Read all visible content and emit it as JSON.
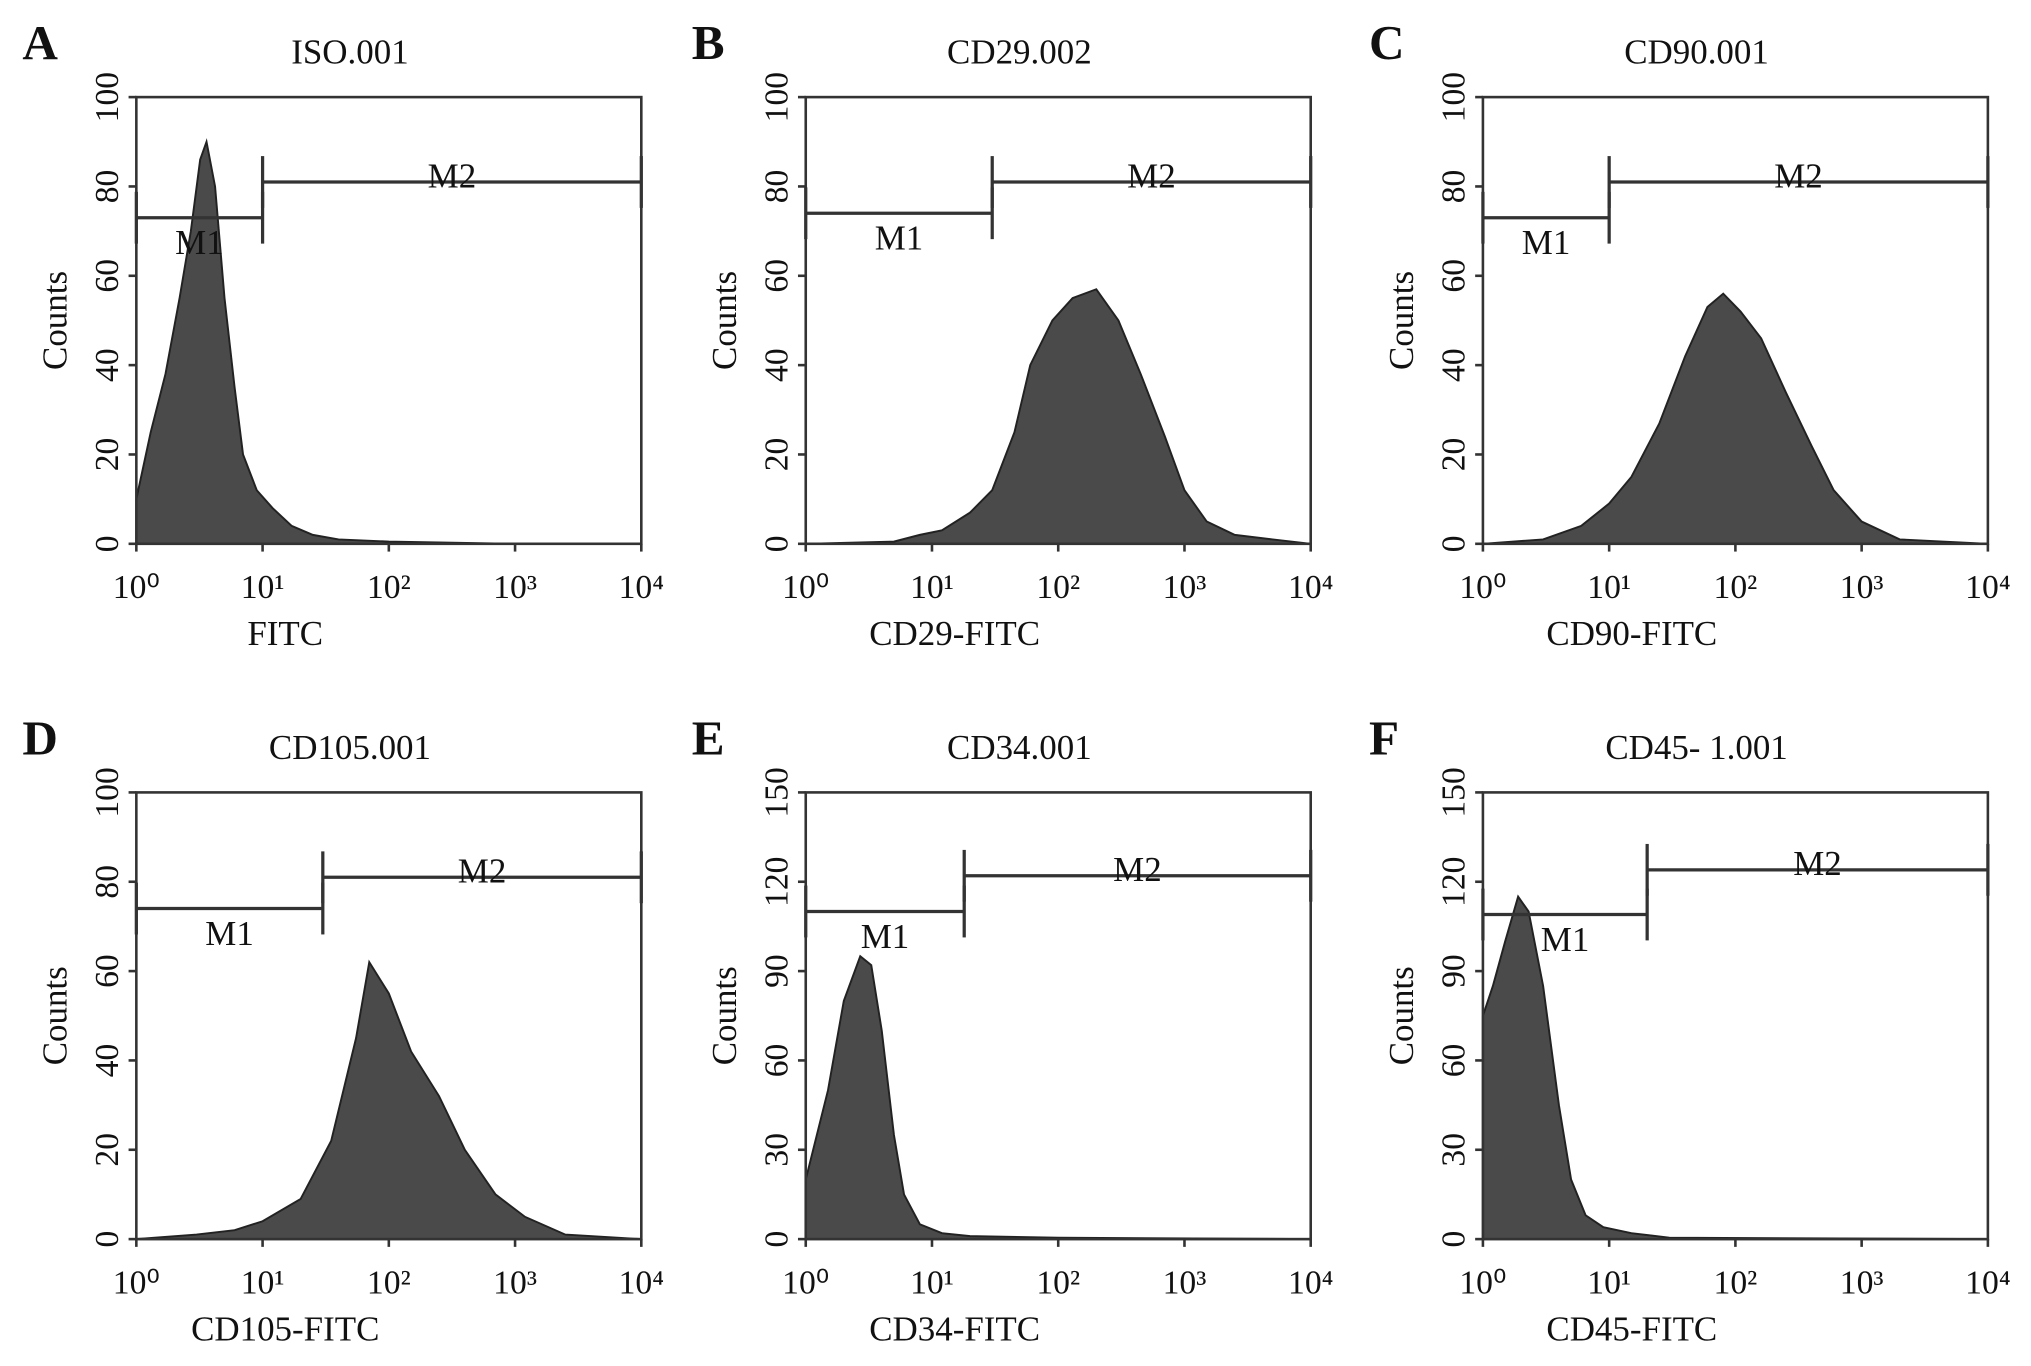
{
  "chart_data": [
    {
      "type": "area",
      "panel": "A",
      "title": "ISO.001",
      "xlabel": "FITC",
      "ylabel": "Counts",
      "color": "#4a4a4a",
      "xscale": "log",
      "x": [
        1,
        1.3,
        1.7,
        2.2,
        2.7,
        3.2,
        3.6,
        4.2,
        5,
        6,
        7,
        9,
        12,
        17,
        25,
        40,
        100,
        1000,
        10000
      ],
      "values": [
        10,
        25,
        38,
        55,
        70,
        86,
        90,
        80,
        55,
        35,
        20,
        12,
        8,
        4,
        2,
        1,
        0.5,
        0,
        0
      ],
      "xlim": [
        1,
        10000
      ],
      "xticks": [
        {
          "value": 1,
          "label": "10⁰"
        },
        {
          "value": 10,
          "label": "10¹"
        },
        {
          "value": 100,
          "label": "10²"
        },
        {
          "value": 1000,
          "label": "10³"
        },
        {
          "value": 10000,
          "label": "10⁴"
        }
      ],
      "ylim": [
        0,
        100
      ],
      "yticks": [
        0,
        20,
        40,
        60,
        80,
        100
      ],
      "gates": [
        {
          "name": "M1",
          "x": [
            1,
            10
          ],
          "y": 73
        },
        {
          "name": "M2",
          "x": [
            10,
            10000
          ],
          "y": 81
        }
      ]
    },
    {
      "type": "area",
      "panel": "B",
      "title": "CD29.002",
      "xlabel": "CD29-FITC",
      "ylabel": "Counts",
      "color": "#4a4a4a",
      "xscale": "log",
      "x": [
        1,
        5,
        8,
        12,
        20,
        30,
        45,
        60,
        90,
        130,
        200,
        300,
        450,
        700,
        1000,
        1500,
        2500,
        5000,
        10000
      ],
      "values": [
        0,
        0.5,
        2,
        3,
        7,
        12,
        25,
        40,
        50,
        55,
        57,
        50,
        38,
        24,
        12,
        5,
        2,
        1,
        0
      ],
      "xlim": [
        1,
        10000
      ],
      "xticks": [
        {
          "value": 1,
          "label": "10⁰"
        },
        {
          "value": 10,
          "label": "10¹"
        },
        {
          "value": 100,
          "label": "10²"
        },
        {
          "value": 1000,
          "label": "10³"
        },
        {
          "value": 10000,
          "label": "10⁴"
        }
      ],
      "ylim": [
        0,
        100
      ],
      "yticks": [
        0,
        20,
        40,
        60,
        80,
        100
      ],
      "gates": [
        {
          "name": "M1",
          "x": [
            1,
            30
          ],
          "y": 74
        },
        {
          "name": "M2",
          "x": [
            30,
            10000
          ],
          "y": 81
        }
      ]
    },
    {
      "type": "area",
      "panel": "C",
      "title": "CD90.001",
      "xlabel": "CD90-FITC",
      "ylabel": "Counts",
      "color": "#4a4a4a",
      "xscale": "log",
      "x": [
        1,
        3,
        6,
        10,
        15,
        25,
        40,
        60,
        80,
        110,
        160,
        250,
        400,
        600,
        1000,
        2000,
        10000
      ],
      "values": [
        0,
        1,
        4,
        9,
        15,
        27,
        42,
        53,
        56,
        52,
        46,
        34,
        22,
        12,
        5,
        1,
        0
      ],
      "xlim": [
        1,
        10000
      ],
      "xticks": [
        {
          "value": 1,
          "label": "10⁰"
        },
        {
          "value": 10,
          "label": "10¹"
        },
        {
          "value": 100,
          "label": "10²"
        },
        {
          "value": 1000,
          "label": "10³"
        },
        {
          "value": 10000,
          "label": "10⁴"
        }
      ],
      "ylim": [
        0,
        100
      ],
      "yticks": [
        0,
        20,
        40,
        60,
        80,
        100
      ],
      "gates": [
        {
          "name": "M1",
          "x": [
            1,
            10
          ],
          "y": 73
        },
        {
          "name": "M2",
          "x": [
            10,
            10000
          ],
          "y": 81
        }
      ]
    },
    {
      "type": "area",
      "panel": "D",
      "title": "CD105.001",
      "xlabel": "CD105-FITC",
      "ylabel": "Counts",
      "color": "#4a4a4a",
      "xscale": "log",
      "x": [
        1,
        3,
        6,
        10,
        20,
        35,
        55,
        70,
        100,
        150,
        250,
        400,
        700,
        1200,
        2500,
        10000
      ],
      "values": [
        0,
        1,
        2,
        4,
        9,
        22,
        45,
        62,
        55,
        42,
        32,
        20,
        10,
        5,
        1,
        0
      ],
      "xlim": [
        1,
        10000
      ],
      "xticks": [
        {
          "value": 1,
          "label": "10⁰"
        },
        {
          "value": 10,
          "label": "10¹"
        },
        {
          "value": 100,
          "label": "10²"
        },
        {
          "value": 1000,
          "label": "10³"
        },
        {
          "value": 10000,
          "label": "10⁴"
        }
      ],
      "ylim": [
        0,
        100
      ],
      "yticks": [
        0,
        20,
        40,
        60,
        80,
        100
      ],
      "gates": [
        {
          "name": "M1",
          "x": [
            1,
            30
          ],
          "y": 74
        },
        {
          "name": "M2",
          "x": [
            30,
            10000
          ],
          "y": 81
        }
      ]
    },
    {
      "type": "area",
      "panel": "E",
      "title": "CD34.001",
      "xlabel": "CD34-FITC",
      "ylabel": "Counts",
      "color": "#4a4a4a",
      "xscale": "log",
      "x": [
        1,
        1.5,
        2,
        2.7,
        3.3,
        4,
        5,
        6,
        8,
        12,
        20,
        100,
        10000
      ],
      "values": [
        20,
        50,
        80,
        95,
        92,
        70,
        35,
        15,
        5,
        2,
        1,
        0.5,
        0
      ],
      "xlim": [
        1,
        10000
      ],
      "xticks": [
        {
          "value": 1,
          "label": "10⁰"
        },
        {
          "value": 10,
          "label": "10¹"
        },
        {
          "value": 100,
          "label": "10²"
        },
        {
          "value": 1000,
          "label": "10³"
        },
        {
          "value": 10000,
          "label": "10⁴"
        }
      ],
      "ylim": [
        0,
        150
      ],
      "yticks": [
        0,
        30,
        60,
        90,
        120,
        150
      ],
      "gates": [
        {
          "name": "M1",
          "x": [
            1,
            18
          ],
          "y": 110
        },
        {
          "name": "M2",
          "x": [
            18,
            10000
          ],
          "y": 122
        }
      ]
    },
    {
      "type": "area",
      "panel": "F",
      "title": "CD45- 1.001",
      "xlabel": "CD45-FITC",
      "ylabel": "Counts",
      "color": "#4a4a4a",
      "xscale": "log",
      "x": [
        1,
        1.2,
        1.5,
        1.9,
        2.3,
        3,
        4,
        5,
        6.5,
        9,
        15,
        30,
        10000
      ],
      "values": [
        75,
        85,
        100,
        115,
        110,
        85,
        45,
        20,
        8,
        4,
        2,
        0.5,
        0
      ],
      "xlim": [
        1,
        10000
      ],
      "xticks": [
        {
          "value": 1,
          "label": "10⁰"
        },
        {
          "value": 10,
          "label": "10¹"
        },
        {
          "value": 100,
          "label": "10²"
        },
        {
          "value": 1000,
          "label": "10³"
        },
        {
          "value": 10000,
          "label": "10⁴"
        }
      ],
      "ylim": [
        0,
        150
      ],
      "yticks": [
        0,
        30,
        60,
        90,
        120,
        150
      ],
      "gates": [
        {
          "name": "M1",
          "x": [
            1,
            20
          ],
          "y": 109
        },
        {
          "name": "M2",
          "x": [
            20,
            10000
          ],
          "y": 124
        }
      ]
    }
  ]
}
